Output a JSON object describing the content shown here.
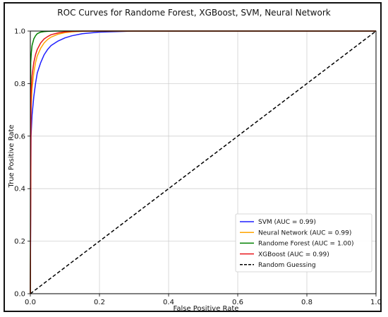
{
  "chart_data": {
    "type": "line",
    "title": "ROC Curves for Randome Forest, XGBoost, SVM, Neural Network",
    "xlabel": "False Positive Rate",
    "ylabel": "True Positive Rate",
    "xlim": [
      0,
      1
    ],
    "ylim": [
      0,
      1
    ],
    "xticks": [
      "0.0",
      "0.2",
      "0.4",
      "0.6",
      "0.8",
      "1.0"
    ],
    "yticks": [
      "0.0",
      "0.2",
      "0.4",
      "0.6",
      "0.8",
      "1.0"
    ],
    "grid": true,
    "legend_position": "lower-right",
    "series": [
      {
        "name": "SVM (AUC = 0.99)",
        "color": "#1f1fff",
        "dash": false,
        "x": [
          0,
          0.002,
          0.005,
          0.01,
          0.015,
          0.02,
          0.03,
          0.04,
          0.05,
          0.06,
          0.08,
          0.1,
          0.12,
          0.15,
          0.2,
          0.25,
          0.3,
          0.4,
          1.0
        ],
        "y": [
          0,
          0.6,
          0.68,
          0.75,
          0.8,
          0.84,
          0.88,
          0.91,
          0.93,
          0.945,
          0.962,
          0.974,
          0.982,
          0.99,
          0.996,
          0.998,
          1.0,
          1.0,
          1.0
        ]
      },
      {
        "name": "Neural Network (AUC = 0.99)",
        "color": "#ffa500",
        "dash": false,
        "x": [
          0,
          0.002,
          0.005,
          0.01,
          0.015,
          0.02,
          0.03,
          0.04,
          0.05,
          0.06,
          0.08,
          0.1,
          0.12,
          0.15,
          0.2,
          0.25,
          1.0
        ],
        "y": [
          0,
          0.7,
          0.78,
          0.84,
          0.88,
          0.905,
          0.935,
          0.955,
          0.968,
          0.977,
          0.988,
          0.994,
          0.997,
          0.999,
          1.0,
          1.0,
          1.0
        ]
      },
      {
        "name": "Randome Forest (AUC = 1.00)",
        "color": "#008000",
        "dash": false,
        "x": [
          0,
          0.001,
          0.003,
          0.005,
          0.008,
          0.01,
          0.015,
          0.02,
          0.03,
          0.04,
          0.05,
          0.07,
          0.1,
          1.0
        ],
        "y": [
          0,
          0.88,
          0.92,
          0.945,
          0.96,
          0.97,
          0.982,
          0.99,
          0.996,
          0.998,
          0.999,
          1.0,
          1.0,
          1.0
        ]
      },
      {
        "name": "XGBoost (AUC = 0.99)",
        "color": "#e8161b",
        "dash": false,
        "x": [
          0,
          0.002,
          0.005,
          0.01,
          0.015,
          0.02,
          0.03,
          0.04,
          0.05,
          0.06,
          0.08,
          0.1,
          0.12,
          0.15,
          0.2,
          1.0
        ],
        "y": [
          0,
          0.76,
          0.83,
          0.88,
          0.91,
          0.93,
          0.955,
          0.97,
          0.979,
          0.986,
          0.993,
          0.997,
          0.999,
          1.0,
          1.0,
          1.0
        ]
      },
      {
        "name": "Random Guessing",
        "color": "#000000",
        "dash": true,
        "x": [
          0,
          1
        ],
        "y": [
          0,
          1
        ]
      }
    ]
  }
}
